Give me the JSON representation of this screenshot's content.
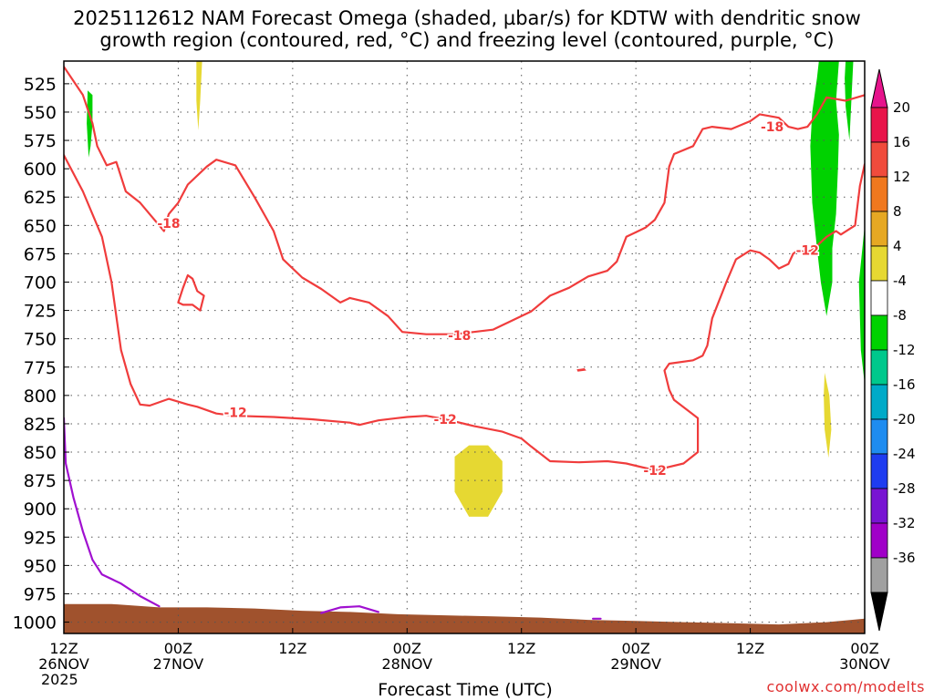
{
  "title_line1": "2025112612 NAM Forecast Omega (shaded, µbar/s) for KDTW with dendritic snow",
  "title_line2": "growth region (contoured, red, °C) and freezing level (contoured, purple, °C)",
  "credit": "coolwx.com/modelts",
  "colors": {
    "temp_contour": "#f03c3c",
    "freezing_level": "#a010d0",
    "terrain": "#a0522d",
    "grid": "#555555"
  },
  "chart_data": {
    "type": "heatmap",
    "title": "2025112612 NAM Forecast Omega (shaded, µbar/s) for KDTW with dendritic snow growth region (contoured, red, °C) and freezing level (contoured, purple, °C)",
    "xlabel": "Forecast Time (UTC)",
    "ylabel": "",
    "x_range_hours": [
      0,
      84
    ],
    "y_range_mb": [
      1010,
      505
    ],
    "y_ticks": [
      525,
      550,
      575,
      600,
      625,
      650,
      675,
      700,
      725,
      750,
      775,
      800,
      825,
      850,
      875,
      900,
      925,
      950,
      975,
      1000
    ],
    "x_ticks": [
      {
        "hour": 0,
        "line1": "12Z",
        "line2": "26NOV",
        "line3": "2025"
      },
      {
        "hour": 12,
        "line1": "00Z",
        "line2": "27NOV",
        "line3": ""
      },
      {
        "hour": 24,
        "line1": "12Z",
        "line2": "",
        "line3": ""
      },
      {
        "hour": 36,
        "line1": "00Z",
        "line2": "28NOV",
        "line3": ""
      },
      {
        "hour": 48,
        "line1": "12Z",
        "line2": "",
        "line3": ""
      },
      {
        "hour": 60,
        "line1": "00Z",
        "line2": "29NOV",
        "line3": ""
      },
      {
        "hour": 72,
        "line1": "12Z",
        "line2": "",
        "line3": ""
      },
      {
        "hour": 84,
        "line1": "00Z",
        "line2": "30NOV",
        "line3": ""
      }
    ],
    "grid": true,
    "colorbar": {
      "labels": [
        "20",
        "16",
        "12",
        "8",
        "4",
        "-4",
        "-8",
        "-12",
        "-16",
        "-20",
        "-24",
        "-28",
        "-32",
        "-36"
      ],
      "colors": [
        "#e8144a",
        "#f04b3c",
        "#f0781e",
        "#e6a823",
        "#e6d832",
        "#ffffff",
        "#00d200",
        "#00c88c",
        "#00aac8",
        "#1e8cf0",
        "#1e3cf0",
        "#7814d2",
        "#a000c8",
        "#a0a0a0"
      ],
      "top_arrow_color": "#e6148c",
      "bottom_arrow_color": "#000000"
    },
    "contour_labels": [
      {
        "text": "-18",
        "hour": 11.0,
        "mb": 648
      },
      {
        "text": "-18",
        "hour": 41.5,
        "mb": 747
      },
      {
        "text": "-18",
        "hour": 74.3,
        "mb": 563
      },
      {
        "text": "-12",
        "hour": 18.0,
        "mb": 815
      },
      {
        "text": "-12",
        "hour": 40.0,
        "mb": 821
      },
      {
        "text": "-12",
        "hour": 62.0,
        "mb": 866
      },
      {
        "text": "-12",
        "hour": 78.0,
        "mb": 672
      }
    ],
    "series": [
      {
        "name": "-18",
        "kind": "temp",
        "points": [
          [
            0,
            510
          ],
          [
            2,
            535
          ],
          [
            3,
            560
          ],
          [
            3.5,
            580
          ],
          [
            4.5,
            597
          ],
          [
            5.5,
            594
          ],
          [
            6.5,
            620
          ],
          [
            8,
            630
          ],
          [
            9,
            640
          ],
          [
            10.5,
            655
          ],
          [
            11,
            640
          ],
          [
            12,
            630
          ],
          [
            13,
            614
          ],
          [
            15,
            598
          ],
          [
            16,
            592
          ],
          [
            18,
            597
          ],
          [
            20,
            625
          ],
          [
            22,
            655
          ],
          [
            23,
            680
          ],
          [
            25,
            696
          ],
          [
            27,
            706
          ],
          [
            29,
            718
          ],
          [
            30,
            714
          ],
          [
            32,
            718
          ],
          [
            34,
            730
          ],
          [
            35.5,
            744
          ],
          [
            38,
            746
          ],
          [
            41,
            746
          ],
          [
            45,
            742
          ],
          [
            46,
            738
          ],
          [
            47,
            734
          ],
          [
            49,
            726
          ],
          [
            51,
            712
          ],
          [
            53,
            705
          ],
          [
            55,
            695
          ],
          [
            57,
            690
          ],
          [
            58,
            682
          ],
          [
            59,
            660
          ],
          [
            61,
            652
          ],
          [
            62,
            645
          ],
          [
            63,
            630
          ],
          [
            63.5,
            598
          ],
          [
            64,
            587
          ],
          [
            66,
            580
          ],
          [
            67,
            565
          ],
          [
            68,
            563
          ],
          [
            70,
            565
          ],
          [
            72,
            558
          ],
          [
            73,
            552
          ],
          [
            75,
            555
          ],
          [
            76,
            563
          ],
          [
            77,
            565
          ],
          [
            78,
            563
          ],
          [
            79,
            552
          ],
          [
            80,
            537
          ],
          [
            82,
            540
          ],
          [
            84,
            535
          ]
        ]
      },
      {
        "name": "-18 closed",
        "kind": "temp",
        "points": [
          [
            12,
            718
          ],
          [
            12.5,
            705
          ],
          [
            13,
            694
          ],
          [
            13.5,
            697
          ],
          [
            14,
            708
          ],
          [
            14.7,
            712
          ],
          [
            14.3,
            725
          ],
          [
            13.5,
            720
          ],
          [
            12.5,
            720
          ],
          [
            12,
            718
          ]
        ]
      },
      {
        "name": "-12",
        "kind": "temp",
        "points": [
          [
            0,
            588
          ],
          [
            2,
            620
          ],
          [
            4,
            660
          ],
          [
            5,
            700
          ],
          [
            6,
            760
          ],
          [
            7,
            790
          ],
          [
            8,
            808
          ],
          [
            9,
            809
          ],
          [
            11,
            803
          ],
          [
            13,
            808
          ],
          [
            14,
            810
          ],
          [
            16,
            816
          ],
          [
            18,
            818
          ],
          [
            22,
            819
          ],
          [
            26,
            821
          ],
          [
            30,
            824
          ],
          [
            31,
            826
          ],
          [
            33,
            822
          ],
          [
            35,
            820
          ],
          [
            36,
            819
          ],
          [
            38,
            818
          ],
          [
            40,
            821
          ],
          [
            43,
            827
          ],
          [
            46,
            832
          ],
          [
            48,
            838
          ],
          [
            49,
            845
          ],
          [
            51,
            858
          ],
          [
            54,
            859
          ],
          [
            57,
            858
          ],
          [
            59,
            860
          ],
          [
            60,
            862
          ],
          [
            62,
            866
          ],
          [
            65,
            860
          ],
          [
            66.5,
            850
          ],
          [
            66.5,
            820
          ],
          [
            64,
            804
          ],
          [
            63.5,
            795
          ],
          [
            63,
            778
          ],
          [
            63.5,
            772
          ],
          [
            66,
            769
          ],
          [
            67,
            765
          ],
          [
            67.5,
            756
          ],
          [
            68,
            732
          ],
          [
            69.5,
            700
          ],
          [
            70.5,
            680
          ],
          [
            72,
            672
          ],
          [
            73,
            674
          ],
          [
            74,
            680
          ],
          [
            75,
            688
          ],
          [
            76,
            684
          ],
          [
            76.5,
            675
          ],
          [
            77,
            672
          ],
          [
            78,
            674
          ],
          [
            79,
            668
          ],
          [
            80,
            660
          ],
          [
            81,
            655
          ],
          [
            81.5,
            658
          ],
          [
            83,
            650
          ],
          [
            83.5,
            615
          ],
          [
            84,
            596
          ]
        ]
      },
      {
        "name": "freezing",
        "kind": "freeze",
        "points": [
          [
            0,
            820
          ],
          [
            0.2,
            860
          ],
          [
            1,
            890
          ],
          [
            2,
            920
          ],
          [
            3,
            945
          ],
          [
            4,
            958
          ],
          [
            5,
            962
          ],
          [
            6,
            966
          ],
          [
            8,
            977
          ],
          [
            10,
            986
          ]
        ]
      },
      {
        "name": "freezing2",
        "kind": "freeze",
        "points": [
          [
            27,
            992
          ],
          [
            29,
            987
          ],
          [
            31,
            986
          ],
          [
            33,
            991
          ]
        ]
      },
      {
        "name": "freezing3",
        "kind": "freeze",
        "points": [
          [
            55.5,
            997
          ],
          [
            56.3,
            997
          ]
        ]
      }
    ],
    "shaded": [
      {
        "color": "#e6d832",
        "points": [
          [
            13.9,
            505
          ],
          [
            14.5,
            505
          ],
          [
            14.3,
            540
          ],
          [
            14.1,
            566
          ],
          [
            13.9,
            540
          ]
        ]
      },
      {
        "color": "#00d200",
        "points": [
          [
            2.5,
            531
          ],
          [
            3,
            535
          ],
          [
            3,
            560
          ],
          [
            2.8,
            580
          ],
          [
            2.6,
            590
          ],
          [
            2.4,
            560
          ]
        ]
      },
      {
        "color": "#e6d832",
        "points": [
          [
            41,
            854
          ],
          [
            42.5,
            844
          ],
          [
            44.5,
            844
          ],
          [
            46,
            858
          ],
          [
            46,
            885
          ],
          [
            44.5,
            907
          ],
          [
            42.5,
            907
          ],
          [
            41,
            885
          ]
        ]
      },
      {
        "color": "#e6d832",
        "points": [
          [
            79.8,
            780
          ],
          [
            80.3,
            800
          ],
          [
            80.5,
            830
          ],
          [
            80.2,
            855
          ],
          [
            79.8,
            830
          ],
          [
            79.7,
            800
          ]
        ]
      },
      {
        "color": "#00d200",
        "points": [
          [
            79.2,
            505
          ],
          [
            81.3,
            505
          ],
          [
            81.0,
            540
          ],
          [
            81.3,
            570
          ],
          [
            81.2,
            600
          ],
          [
            81,
            640
          ],
          [
            80.6,
            670
          ],
          [
            80.6,
            700
          ],
          [
            80.0,
            730
          ],
          [
            79.4,
            700
          ],
          [
            79.0,
            670
          ],
          [
            78.5,
            630
          ],
          [
            78.3,
            580
          ],
          [
            78.5,
            550
          ],
          [
            79,
            520
          ]
        ]
      },
      {
        "color": "#00d200",
        "points": [
          [
            82.0,
            505
          ],
          [
            82.8,
            505
          ],
          [
            82.6,
            540
          ],
          [
            82.4,
            575
          ],
          [
            82,
            545
          ],
          [
            81.9,
            520
          ]
        ]
      },
      {
        "color": "#00d200",
        "points": [
          [
            84,
            650
          ],
          [
            84,
            790
          ],
          [
            83.6,
            760
          ],
          [
            83.4,
            700
          ]
        ]
      },
      {
        "color": "#f03c3c",
        "points": [
          [
            53.8,
            777
          ],
          [
            54.6,
            776
          ],
          [
            54.8,
            778
          ],
          [
            53.9,
            779
          ]
        ]
      }
    ],
    "terrain": [
      [
        0,
        984
      ],
      [
        5,
        984
      ],
      [
        10,
        987
      ],
      [
        15,
        987
      ],
      [
        20,
        988
      ],
      [
        25,
        990
      ],
      [
        30,
        991
      ],
      [
        35,
        993
      ],
      [
        40,
        994
      ],
      [
        45,
        995
      ],
      [
        50,
        996
      ],
      [
        55,
        998
      ],
      [
        60,
        999
      ],
      [
        65,
        1000
      ],
      [
        70,
        1001
      ],
      [
        75,
        1002
      ],
      [
        80,
        1000
      ],
      [
        84,
        997
      ]
    ]
  }
}
